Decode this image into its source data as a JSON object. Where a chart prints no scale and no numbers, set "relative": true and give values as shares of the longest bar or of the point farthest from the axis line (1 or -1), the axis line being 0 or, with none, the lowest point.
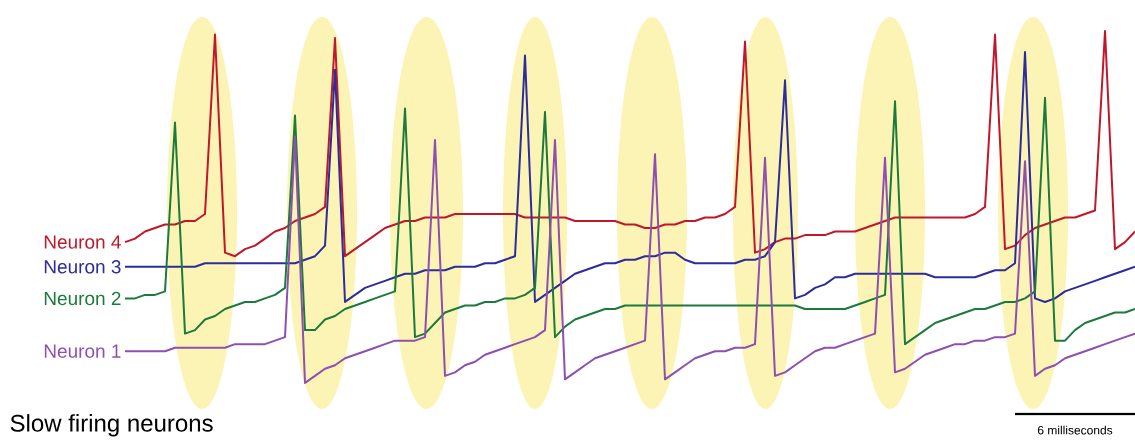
{
  "chart_data": {
    "type": "line",
    "relative": true,
    "title": "Slow firing neurons",
    "annotations": [
      "6 milliseconds"
    ],
    "legend": false,
    "categories": [
      null,
      null,
      null,
      null,
      null,
      null,
      null,
      null,
      null,
      null,
      null,
      null,
      null,
      null,
      null,
      null,
      null,
      null,
      null,
      null,
      null,
      null,
      null,
      null,
      null,
      null,
      null,
      null,
      null,
      null,
      null,
      null,
      null,
      null,
      null,
      null,
      null,
      null,
      null,
      null,
      null,
      null,
      null,
      null,
      null,
      null,
      null,
      null,
      null,
      null,
      null,
      null,
      null,
      null,
      null,
      null,
      null,
      null,
      null,
      null,
      null,
      null,
      null,
      null,
      null,
      null,
      null,
      null,
      null,
      null,
      null,
      null,
      null,
      null,
      null,
      null,
      null,
      null,
      null,
      null,
      null,
      null,
      null,
      null,
      null,
      null,
      null,
      null,
      null,
      null,
      null,
      null,
      null,
      null,
      null,
      null,
      null,
      null,
      null,
      null,
      null,
      null
    ],
    "series": [
      {
        "name": "Neuron 4",
        "color": "#c0182a",
        "values": [
          0.4,
          0.41,
          0.43,
          0.44,
          0.45,
          0.45,
          0.46,
          0.46,
          0.48,
          0.99,
          0.37,
          0.36,
          0.38,
          0.39,
          0.41,
          0.43,
          0.44,
          0.46,
          0.47,
          0.48,
          0.5,
          0.98,
          0.36,
          0.38,
          0.4,
          0.42,
          0.44,
          0.45,
          0.46,
          0.46,
          0.47,
          0.47,
          0.47,
          0.48,
          0.48,
          0.48,
          0.48,
          0.48,
          0.48,
          0.48,
          0.47,
          0.47,
          0.47,
          0.47,
          0.47,
          0.46,
          0.46,
          0.46,
          0.46,
          0.46,
          0.45,
          0.45,
          0.44,
          0.44,
          0.45,
          0.45,
          0.46,
          0.46,
          0.47,
          0.47,
          0.48,
          0.5,
          0.97,
          0.37,
          0.38,
          0.4,
          0.41,
          0.41,
          0.42,
          0.42,
          0.42,
          0.43,
          0.43,
          0.43,
          0.44,
          0.45,
          0.46,
          0.47,
          0.47,
          0.47,
          0.47,
          0.47,
          0.47,
          0.47,
          0.47,
          0.48,
          0.5,
          0.99,
          0.38,
          0.39,
          0.42,
          0.44,
          0.45,
          0.46,
          0.47,
          0.47,
          0.48,
          0.49,
          1.0,
          0.38,
          0.4,
          0.43
        ]
      },
      {
        "name": "Neuron 3",
        "color": "#2c2c9c",
        "values": [
          0.33,
          0.33,
          0.33,
          0.33,
          0.33,
          0.33,
          0.33,
          0.33,
          0.34,
          0.34,
          0.34,
          0.34,
          0.34,
          0.34,
          0.34,
          0.34,
          0.34,
          0.34,
          0.35,
          0.36,
          0.39,
          0.89,
          0.23,
          0.25,
          0.27,
          0.28,
          0.29,
          0.3,
          0.31,
          0.31,
          0.32,
          0.32,
          0.32,
          0.33,
          0.33,
          0.33,
          0.34,
          0.34,
          0.35,
          0.36,
          0.93,
          0.23,
          0.25,
          0.27,
          0.29,
          0.31,
          0.32,
          0.33,
          0.34,
          0.34,
          0.35,
          0.35,
          0.36,
          0.36,
          0.37,
          0.37,
          0.35,
          0.34,
          0.34,
          0.34,
          0.34,
          0.34,
          0.35,
          0.35,
          0.36,
          0.4,
          0.86,
          0.24,
          0.25,
          0.27,
          0.28,
          0.3,
          0.3,
          0.31,
          0.31,
          0.31,
          0.31,
          0.31,
          0.31,
          0.31,
          0.31,
          0.3,
          0.3,
          0.3,
          0.3,
          0.3,
          0.31,
          0.32,
          0.32,
          0.34,
          0.94,
          0.24,
          0.23,
          0.24,
          0.26,
          0.27,
          0.28,
          0.29,
          0.3,
          0.31,
          0.32,
          0.33
        ]
      },
      {
        "name": "Neuron 2",
        "color": "#1b7a3c",
        "values": [
          0.24,
          0.24,
          0.25,
          0.25,
          0.26,
          0.74,
          0.14,
          0.15,
          0.18,
          0.19,
          0.21,
          0.22,
          0.23,
          0.23,
          0.24,
          0.25,
          0.27,
          0.76,
          0.15,
          0.15,
          0.18,
          0.19,
          0.21,
          0.22,
          0.23,
          0.24,
          0.25,
          0.26,
          0.78,
          0.13,
          0.14,
          0.17,
          0.2,
          0.21,
          0.22,
          0.22,
          0.23,
          0.23,
          0.24,
          0.24,
          0.25,
          0.27,
          0.77,
          0.13,
          0.16,
          0.18,
          0.19,
          0.2,
          0.21,
          0.21,
          0.22,
          0.22,
          0.22,
          0.22,
          0.22,
          0.22,
          0.22,
          0.22,
          0.22,
          0.22,
          0.22,
          0.22,
          0.22,
          0.22,
          0.22,
          0.22,
          0.22,
          0.22,
          0.21,
          0.21,
          0.21,
          0.21,
          0.21,
          0.22,
          0.23,
          0.24,
          0.25,
          0.8,
          0.11,
          0.13,
          0.15,
          0.17,
          0.18,
          0.19,
          0.2,
          0.21,
          0.21,
          0.22,
          0.23,
          0.23,
          0.24,
          0.26,
          0.81,
          0.12,
          0.12,
          0.15,
          0.17,
          0.18,
          0.19,
          0.2,
          0.2,
          0.21
        ]
      },
      {
        "name": "Neuron 1",
        "color": "#8e4fb0",
        "values": [
          0.09,
          0.09,
          0.09,
          0.09,
          0.09,
          0.1,
          0.1,
          0.1,
          0.1,
          0.1,
          0.1,
          0.11,
          0.11,
          0.11,
          0.11,
          0.12,
          0.13,
          0.7,
          0,
          0.02,
          0.04,
          0.05,
          0.07,
          0.08,
          0.09,
          0.1,
          0.11,
          0.12,
          0.12,
          0.12,
          0.13,
          0.69,
          0.02,
          0.03,
          0.05,
          0.06,
          0.08,
          0.09,
          0.1,
          0.11,
          0.12,
          0.13,
          0.15,
          0.69,
          0.01,
          0.03,
          0.05,
          0.07,
          0.08,
          0.09,
          0.1,
          0.11,
          0.12,
          0.65,
          0.01,
          0.03,
          0.05,
          0.07,
          0.08,
          0.09,
          0.09,
          0.1,
          0.1,
          0.11,
          0.64,
          0.02,
          0.03,
          0.05,
          0.07,
          0.09,
          0.1,
          0.1,
          0.11,
          0.12,
          0.13,
          0.14,
          0.64,
          0.03,
          0.04,
          0.06,
          0.08,
          0.09,
          0.1,
          0.11,
          0.11,
          0.12,
          0.12,
          0.13,
          0.13,
          0.14,
          0.63,
          0.02,
          0.04,
          0.05,
          0.07,
          0.08,
          0.09,
          0.1,
          0.11,
          0.12,
          0.13,
          0.14
        ]
      }
    ]
  }
}
